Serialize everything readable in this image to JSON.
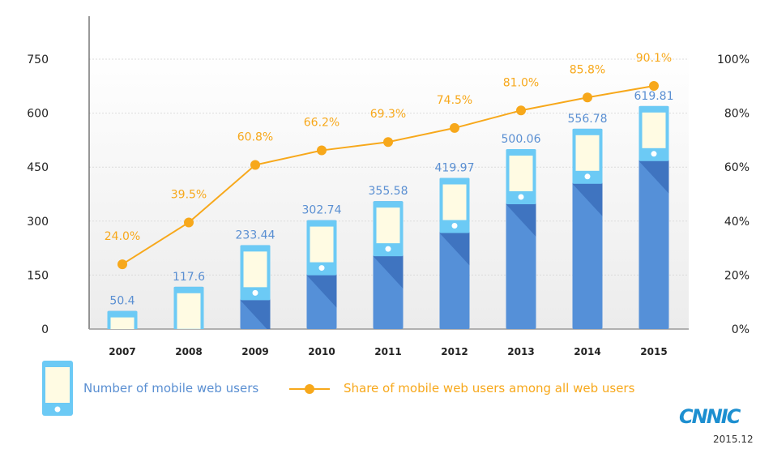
{
  "chart_data": {
    "type": "bar",
    "categories": [
      "2007",
      "2008",
      "2009",
      "2010",
      "2011",
      "2012",
      "2013",
      "2014",
      "2015"
    ],
    "series": [
      {
        "name": "Number of mobile web users",
        "type": "bar",
        "axis": "left",
        "values": [
          50.4,
          117.6,
          233.44,
          302.74,
          355.58,
          419.97,
          500.06,
          556.78,
          619.81
        ],
        "labels": [
          "50.4",
          "117.6",
          "233.44",
          "302.74",
          "355.58",
          "419.97",
          "500.06",
          "556.78",
          "619.81"
        ]
      },
      {
        "name": "Share of mobile web users among all web users",
        "type": "line",
        "axis": "right",
        "values": [
          24.0,
          39.5,
          60.8,
          66.2,
          69.3,
          74.5,
          81.0,
          85.8,
          90.1
        ],
        "labels": [
          "24.0%",
          "39.5%",
          "60.8%",
          "66.2%",
          "69.3%",
          "74.5%",
          "81.0%",
          "85.8%",
          "90.1%"
        ]
      }
    ],
    "y_left": {
      "ticks": [
        "0",
        "150",
        "300",
        "450",
        "600",
        "750"
      ],
      "ylim": [
        0,
        750
      ]
    },
    "y_right": {
      "ticks": [
        "0%",
        "20%",
        "40%",
        "60%",
        "80%",
        "100%"
      ],
      "ylim": [
        0,
        100
      ]
    },
    "grid": true,
    "legend_placement": "bottom",
    "colors": {
      "bar": "#5590d8",
      "bar_dark": "#3f74c0",
      "phone": "#6ccaf5",
      "screen": "#fffbe3",
      "line": "#f7a81b",
      "bar_label": "#5a8fd2"
    }
  },
  "footer": {
    "logo": "CNNIC",
    "date": "2015.12"
  }
}
